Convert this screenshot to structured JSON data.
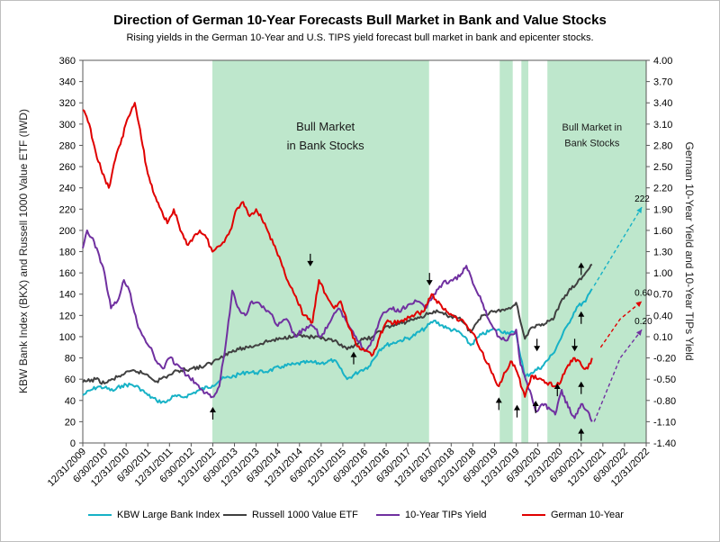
{
  "chart_data": {
    "type": "line",
    "title": "Direction of German 10-Year Forecasts Bull Market in Bank and Value Stocks",
    "subtitle": "Rising yields in the German 10-Year and U.S. TIPS yield forecast bull market in bank and epicenter stocks.",
    "ylabel": "KBW Bank Index (BKX) and Russell 1000 Value ETF (IWD)",
    "y2label": "German 10-Year Yield and 10-Year TIPs Yield",
    "ylim": [
      0,
      360
    ],
    "y2lim": [
      -1.4,
      4.0
    ],
    "y_ticks": [
      "0",
      "20",
      "40",
      "60",
      "80",
      "100",
      "120",
      "140",
      "160",
      "180",
      "200",
      "220",
      "240",
      "260",
      "280",
      "300",
      "320",
      "340",
      "360"
    ],
    "y2_ticks": [
      "-1.40",
      "-1.10",
      "-0.80",
      "-0.50",
      "-0.20",
      "0.10",
      "0.40",
      "0.70",
      "1.00",
      "1.30",
      "1.60",
      "1.90",
      "2.20",
      "2.50",
      "2.80",
      "3.10",
      "3.40",
      "3.70",
      "4.00"
    ],
    "x_ticks": [
      "12/31/2009",
      "6/30/2010",
      "12/31/2010",
      "6/30/2011",
      "12/31/2011",
      "6/30/2012",
      "12/31/2012",
      "6/30/2013",
      "12/31/2013",
      "6/30/2014",
      "12/31/2014",
      "6/30/2015",
      "12/31/2015",
      "6/30/2016",
      "12/31/2016",
      "6/30/2017",
      "12/31/2017",
      "6/30/2018",
      "12/31/2018",
      "6/30/2019",
      "12/31/2019",
      "6/30/2020",
      "12/31/2020",
      "6/30/2021",
      "12/31/2021",
      "6/30/2022",
      "12/31/2022"
    ],
    "shaded_periods": [
      {
        "start": 2012.99,
        "end": 2017.99
      },
      {
        "start": 2019.62,
        "end": 2019.92
      },
      {
        "start": 2020.12,
        "end": 2020.28
      },
      {
        "start": 2020.72,
        "end": 2023.0
      }
    ],
    "annotations": [
      {
        "text": "Bull Market",
        "x": 2015.6,
        "y": 294
      },
      {
        "text": "in Bank Stocks",
        "x": 2015.6,
        "y": 276
      },
      {
        "text": "Bull Market in",
        "x": 2021.75,
        "y": 294,
        "small": true
      },
      {
        "text": "Bank Stocks",
        "x": 2021.75,
        "y": 279,
        "small": true
      }
    ],
    "series": [
      {
        "name": "KBW Large Bank Index",
        "axis": "left",
        "color": "#17b2c6",
        "x": [
          2010.0,
          2010.2,
          2010.35,
          2010.5,
          2010.7,
          2010.9,
          2011.1,
          2011.3,
          2011.5,
          2011.7,
          2011.9,
          2012.1,
          2012.3,
          2012.5,
          2012.7,
          2012.99,
          2013.2,
          2013.5,
          2013.8,
          2014.0,
          2014.3,
          2014.6,
          2014.9,
          2015.2,
          2015.5,
          2015.8,
          2016.0,
          2016.1,
          2016.4,
          2016.6,
          2016.85,
          2017.0,
          2017.3,
          2017.6,
          2017.9,
          2018.1,
          2018.4,
          2018.7,
          2018.95,
          2019.2,
          2019.5,
          2019.8,
          2020.0,
          2020.2,
          2020.35,
          2020.6,
          2020.85,
          2021.0,
          2021.2,
          2021.4,
          2021.6,
          2021.75
        ],
        "y": [
          45,
          50,
          53,
          52,
          49,
          54,
          55,
          52,
          45,
          40,
          38,
          44,
          43,
          46,
          50,
          54,
          60,
          63,
          67,
          66,
          68,
          72,
          74,
          76,
          75,
          78,
          66,
          60,
          68,
          72,
          88,
          92,
          96,
          100,
          108,
          115,
          108,
          104,
          92,
          102,
          107,
          104,
          103,
          62,
          66,
          72,
          84,
          96,
          112,
          128,
          133,
          145
        ]
      },
      {
        "name": "Russell 1000 Value ETF",
        "axis": "left",
        "color": "#404040",
        "x": [
          2010.0,
          2010.3,
          2010.5,
          2010.7,
          2010.9,
          2011.2,
          2011.5,
          2011.7,
          2011.9,
          2012.2,
          2012.5,
          2012.8,
          2013.0,
          2013.3,
          2013.6,
          2013.99,
          2014.3,
          2014.6,
          2014.9,
          2015.2,
          2015.5,
          2015.8,
          2016.0,
          2016.1,
          2016.4,
          2016.7,
          2016.95,
          2017.3,
          2017.6,
          2017.9,
          2018.1,
          2018.4,
          2018.7,
          2018.95,
          2019.2,
          2019.5,
          2019.8,
          2020.0,
          2020.2,
          2020.3,
          2020.6,
          2020.85,
          2021.0,
          2021.2,
          2021.4,
          2021.6,
          2021.75
        ],
        "y": [
          57,
          60,
          56,
          60,
          64,
          68,
          64,
          58,
          62,
          68,
          70,
          72,
          76,
          84,
          88,
          92,
          96,
          98,
          102,
          100,
          98,
          96,
          90,
          88,
          96,
          100,
          108,
          112,
          116,
          120,
          124,
          120,
          118,
          104,
          120,
          124,
          126,
          132,
          98,
          106,
          112,
          116,
          130,
          142,
          150,
          160,
          168
        ]
      },
      {
        "name": "10-Year TIPs Yield",
        "axis": "right",
        "color": "#7030a0",
        "x": [
          2010.0,
          2010.1,
          2010.2,
          2010.35,
          2010.5,
          2010.65,
          2010.8,
          2010.95,
          2011.1,
          2011.25,
          2011.4,
          2011.55,
          2011.7,
          2011.85,
          2012.0,
          2012.2,
          2012.4,
          2012.6,
          2012.8,
          2012.99,
          2013.15,
          2013.3,
          2013.45,
          2013.6,
          2013.75,
          2013.9,
          2014.1,
          2014.3,
          2014.5,
          2014.7,
          2014.9,
          2015.1,
          2015.3,
          2015.5,
          2015.7,
          2015.9,
          2016.1,
          2016.3,
          2016.5,
          2016.7,
          2016.9,
          2017.1,
          2017.3,
          2017.5,
          2017.7,
          2017.9,
          2018.1,
          2018.3,
          2018.5,
          2018.7,
          2018.85,
          2019.0,
          2019.2,
          2019.4,
          2019.6,
          2019.8,
          2020.0,
          2020.1,
          2020.25,
          2020.45,
          2020.6,
          2020.75,
          2020.9,
          2021.05,
          2021.2,
          2021.35,
          2021.5,
          2021.65,
          2021.75
        ],
        "y": [
          1.35,
          1.6,
          1.5,
          1.3,
          1.0,
          0.5,
          0.6,
          0.9,
          0.7,
          0.3,
          0.1,
          -0.05,
          -0.25,
          -0.35,
          -0.2,
          -0.3,
          -0.45,
          -0.55,
          -0.7,
          -0.75,
          -0.6,
          0.0,
          0.75,
          0.5,
          0.4,
          0.6,
          0.55,
          0.45,
          0.25,
          0.35,
          0.1,
          0.2,
          0.25,
          0.1,
          0.3,
          0.5,
          0.3,
          0.1,
          -0.1,
          0.05,
          0.4,
          0.5,
          0.45,
          0.55,
          0.6,
          0.5,
          0.7,
          0.85,
          0.9,
          0.95,
          1.1,
          0.85,
          0.6,
          0.3,
          0.1,
          0.05,
          0.2,
          -0.3,
          -0.55,
          -0.95,
          -0.85,
          -0.9,
          -1.0,
          -0.65,
          -0.9,
          -1.05,
          -0.85,
          -0.95,
          -1.1
        ]
      },
      {
        "name": "German 10-Year",
        "axis": "right",
        "color": "#e00000",
        "x": [
          2010.0,
          2010.15,
          2010.3,
          2010.45,
          2010.6,
          2010.75,
          2010.9,
          2011.05,
          2011.2,
          2011.35,
          2011.5,
          2011.65,
          2011.8,
          2011.95,
          2012.1,
          2012.25,
          2012.4,
          2012.55,
          2012.7,
          2012.85,
          2012.99,
          2013.2,
          2013.4,
          2013.55,
          2013.7,
          2013.85,
          2014.0,
          2014.2,
          2014.4,
          2014.6,
          2014.8,
          2014.95,
          2015.1,
          2015.3,
          2015.45,
          2015.6,
          2015.8,
          2015.95,
          2016.1,
          2016.3,
          2016.5,
          2016.7,
          2016.85,
          2017.0,
          2017.3,
          2017.6,
          2017.85,
          2018.05,
          2018.3,
          2018.55,
          2018.8,
          2019.0,
          2019.2,
          2019.4,
          2019.6,
          2019.75,
          2019.9,
          2020.05,
          2020.2,
          2020.35,
          2020.5,
          2020.7,
          2020.9,
          2021.05,
          2021.2,
          2021.35,
          2021.5,
          2021.65,
          2021.75
        ],
        "y": [
          3.3,
          3.1,
          2.7,
          2.4,
          2.2,
          2.6,
          2.9,
          3.2,
          3.4,
          2.9,
          2.4,
          2.1,
          1.9,
          1.7,
          1.9,
          1.6,
          1.4,
          1.5,
          1.6,
          1.5,
          1.3,
          1.4,
          1.6,
          1.9,
          2.0,
          1.8,
          1.9,
          1.7,
          1.4,
          1.1,
          0.8,
          0.6,
          0.4,
          0.3,
          0.9,
          0.7,
          0.5,
          0.6,
          0.3,
          0.0,
          -0.1,
          -0.15,
          0.1,
          0.3,
          0.3,
          0.4,
          0.45,
          0.7,
          0.5,
          0.4,
          0.3,
          0.15,
          -0.1,
          -0.35,
          -0.6,
          -0.4,
          -0.25,
          -0.45,
          -0.75,
          -0.45,
          -0.5,
          -0.55,
          -0.6,
          -0.5,
          -0.3,
          -0.2,
          -0.3,
          -0.35,
          -0.2
        ]
      }
    ],
    "forecasts": [
      {
        "axis": "left",
        "color": "#17b2c6",
        "x": [
          2021.8,
          2022.9
        ],
        "y": [
          148,
          222
        ],
        "label": "222"
      },
      {
        "axis": "right",
        "color": "#e00000",
        "x": [
          2021.95,
          2022.4,
          2022.9
        ],
        "y": [
          -0.05,
          0.35,
          0.6
        ],
        "label": "0.60"
      },
      {
        "axis": "right",
        "color": "#7030a0",
        "x": [
          2021.8,
          2022.4,
          2022.9
        ],
        "y": [
          -1.1,
          -0.2,
          0.2
        ],
        "label": "0.20"
      }
    ],
    "arrows": [
      {
        "x": 2013.0,
        "y": 22,
        "dir": "up"
      },
      {
        "x": 2015.25,
        "y": 178,
        "dir": "down"
      },
      {
        "x": 2016.25,
        "y": 74,
        "dir": "up"
      },
      {
        "x": 2018.0,
        "y": 160,
        "dir": "down"
      },
      {
        "x": 2019.6,
        "y": 31,
        "dir": "up"
      },
      {
        "x": 2020.02,
        "y": 24,
        "dir": "up"
      },
      {
        "x": 2020.48,
        "y": 98,
        "dir": "down"
      },
      {
        "x": 2020.45,
        "y": 28,
        "dir": "up"
      },
      {
        "x": 2020.95,
        "y": 44,
        "dir": "up"
      },
      {
        "x": 2021.35,
        "y": 98,
        "dir": "down"
      },
      {
        "x": 2021.5,
        "y": 158,
        "dir": "up"
      },
      {
        "x": 2021.5,
        "y": 112,
        "dir": "up"
      },
      {
        "x": 2021.5,
        "y": 46,
        "dir": "up"
      },
      {
        "x": 2021.5,
        "y": 2,
        "dir": "up"
      }
    ],
    "grid": false,
    "legend": "bottom"
  }
}
